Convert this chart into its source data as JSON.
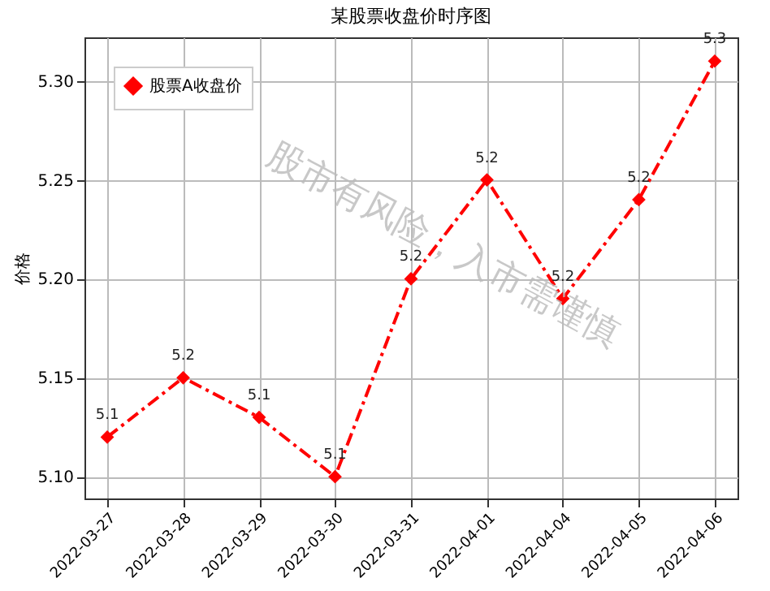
{
  "chart_data": {
    "type": "line",
    "title": "某股票收盘价时序图",
    "ylabel": "价格",
    "categories": [
      "2022-03-27",
      "2022-03-28",
      "2022-03-29",
      "2022-03-30",
      "2022-03-31",
      "2022-04-01",
      "2022-04-04",
      "2022-04-05",
      "2022-04-06"
    ],
    "series": [
      {
        "name": "股票A收盘价",
        "color": "#ff0000",
        "values": [
          5.12,
          5.15,
          5.13,
          5.1,
          5.2,
          5.25,
          5.19,
          5.24,
          5.31
        ],
        "value_labels": [
          "5.1",
          "5.2",
          "5.1",
          "5.1",
          "5.2",
          "5.2",
          "5.2",
          "5.2",
          "5.3"
        ]
      }
    ],
    "ylim": [
      5.089,
      5.322
    ],
    "yticks": [
      {
        "value": 5.1,
        "label": "5.10"
      },
      {
        "value": 5.15,
        "label": "5.15"
      },
      {
        "value": 5.2,
        "label": "5.20"
      },
      {
        "value": 5.25,
        "label": "5.25"
      },
      {
        "value": 5.3,
        "label": "5.30"
      }
    ],
    "grid": true,
    "legend": "top left",
    "marker": "diamond",
    "line_style": "dashdot",
    "annotations": [
      "股市有风险，入市需谨慎"
    ]
  }
}
